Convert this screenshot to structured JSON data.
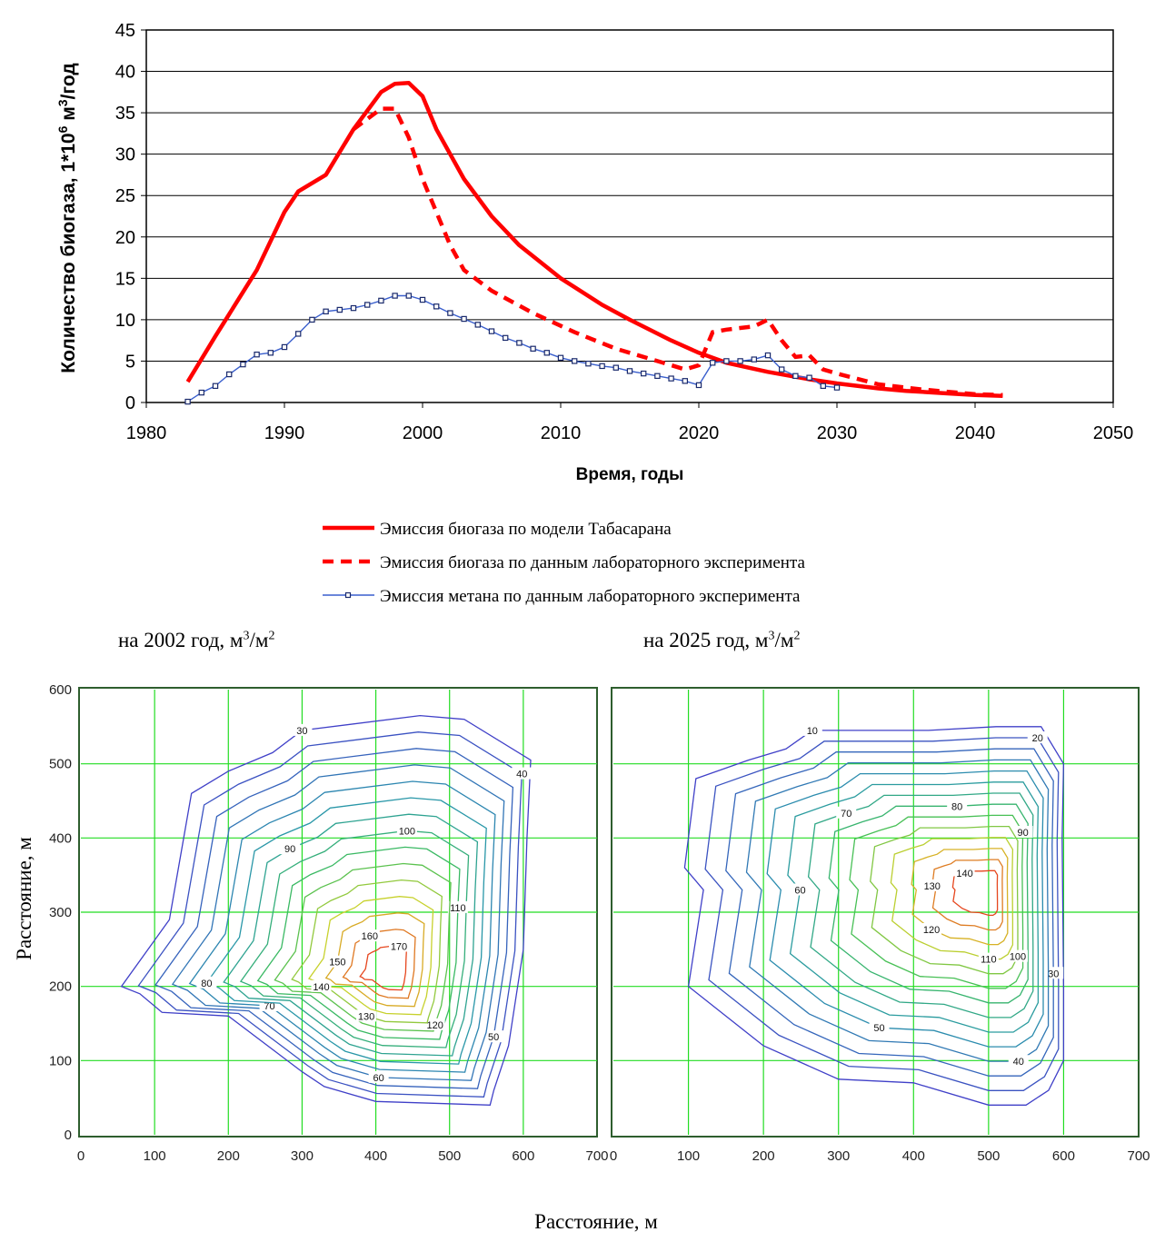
{
  "chart_data": [
    {
      "type": "line",
      "xlabel": "Время, годы",
      "ylabel": "Количество биогаза, 1*10⁶ м³/год",
      "ylabel_parts": [
        "Количество биогаза, 1*10",
        "6",
        " м",
        "3",
        "/год"
      ],
      "xlim": [
        1980,
        2050
      ],
      "ylim": [
        0,
        45
      ],
      "xticks": [
        1980,
        1990,
        2000,
        2010,
        2020,
        2030,
        2040,
        2050
      ],
      "yticks": [
        0,
        5,
        10,
        15,
        20,
        25,
        30,
        35,
        40,
        45
      ],
      "grid": "horizontal",
      "legend_position": "bottom",
      "series": [
        {
          "name": "Эмиссия биогаза по модели Табасарана",
          "color": "#ff0000",
          "style": "solid",
          "x": [
            1983,
            1985,
            1988,
            1990,
            1991,
            1993,
            1995,
            1997,
            1998,
            1999,
            2000,
            2001,
            2003,
            2005,
            2007,
            2010,
            2013,
            2015,
            2018,
            2020,
            2022,
            2025,
            2028,
            2030,
            2033,
            2035,
            2038,
            2040,
            2042
          ],
          "y": [
            2.5,
            8,
            16,
            23,
            25.5,
            27.5,
            33,
            37.5,
            38.5,
            38.6,
            37,
            33,
            27,
            22.5,
            19,
            15,
            11.8,
            10,
            7.5,
            6,
            4.8,
            3.7,
            2.8,
            2.3,
            1.7,
            1.4,
            1.1,
            0.9,
            0.8
          ]
        },
        {
          "name": "Эмиссия биогаза по данным лабораторного эксперимента",
          "color": "#ff0000",
          "style": "dashed",
          "x": [
            1995,
            1997,
            1998,
            1999,
            2000,
            2001,
            2002,
            2003,
            2005,
            2008,
            2011,
            2014,
            2017,
            2019,
            2020,
            2021,
            2022,
            2024,
            2025,
            2026,
            2027,
            2028,
            2029,
            2030,
            2033,
            2036,
            2040,
            2042
          ],
          "y": [
            33,
            35.5,
            35.5,
            32,
            27,
            23,
            19,
            16,
            13.5,
            10.8,
            8.5,
            6.5,
            5,
            4,
            4.5,
            8.5,
            8.8,
            9.2,
            10,
            7.5,
            5.5,
            5.7,
            4,
            3.5,
            2.2,
            1.6,
            1.0,
            0.9
          ]
        },
        {
          "name": "Эмиссия метана по данным лабораторного эксперимента",
          "color": "#3a5fcd",
          "style": "line-square-markers",
          "x": [
            1983,
            1984,
            1985,
            1986,
            1987,
            1988,
            1989,
            1990,
            1991,
            1992,
            1993,
            1994,
            1995,
            1996,
            1997,
            1998,
            1999,
            2000,
            2001,
            2002,
            2003,
            2004,
            2005,
            2006,
            2007,
            2008,
            2009,
            2010,
            2011,
            2012,
            2013,
            2014,
            2015,
            2016,
            2017,
            2018,
            2019,
            2020,
            2021,
            2022,
            2023,
            2024,
            2025,
            2026,
            2027,
            2028,
            2029,
            2030
          ],
          "y": [
            0.1,
            1.2,
            2.0,
            3.4,
            4.6,
            5.8,
            6.0,
            6.7,
            8.3,
            10.0,
            11.0,
            11.2,
            11.4,
            11.8,
            12.3,
            12.9,
            12.9,
            12.4,
            11.6,
            10.8,
            10.1,
            9.4,
            8.6,
            7.8,
            7.2,
            6.5,
            6.0,
            5.4,
            5.0,
            4.7,
            4.4,
            4.2,
            3.8,
            3.5,
            3.2,
            2.9,
            2.6,
            2.1,
            4.8,
            5.0,
            5.0,
            5.2,
            5.7,
            4.0,
            3.2,
            3.0,
            2.0,
            1.8
          ]
        }
      ]
    },
    {
      "type": "contour",
      "title_parts": [
        "на 2002 год, м",
        "3",
        "/м",
        "2"
      ],
      "xlim": [
        0,
        700
      ],
      "ylim": [
        0,
        600
      ],
      "xticks": [
        0,
        100,
        200,
        300,
        400,
        500,
        600,
        700
      ],
      "yticks": [
        0,
        100,
        200,
        300,
        400,
        500,
        600
      ],
      "grid": true,
      "contour_levels": [
        30,
        40,
        50,
        60,
        70,
        80,
        90,
        100,
        110,
        120,
        130,
        140,
        150,
        160,
        170
      ]
    },
    {
      "type": "contour",
      "title_parts": [
        "на 2025 год, м",
        "3",
        "/м",
        "2"
      ],
      "xlim": [
        0,
        700
      ],
      "ylim": [
        0,
        600
      ],
      "xticks": [
        0,
        100,
        200,
        300,
        400,
        500,
        600,
        700
      ],
      "grid": true,
      "contour_levels": [
        10,
        20,
        30,
        40,
        50,
        60,
        70,
        80,
        90,
        100,
        110,
        120,
        130,
        140
      ]
    }
  ],
  "shared": {
    "contour_ylabel": "Расстояние, м",
    "contour_xlabel": "Расстояние, м"
  }
}
